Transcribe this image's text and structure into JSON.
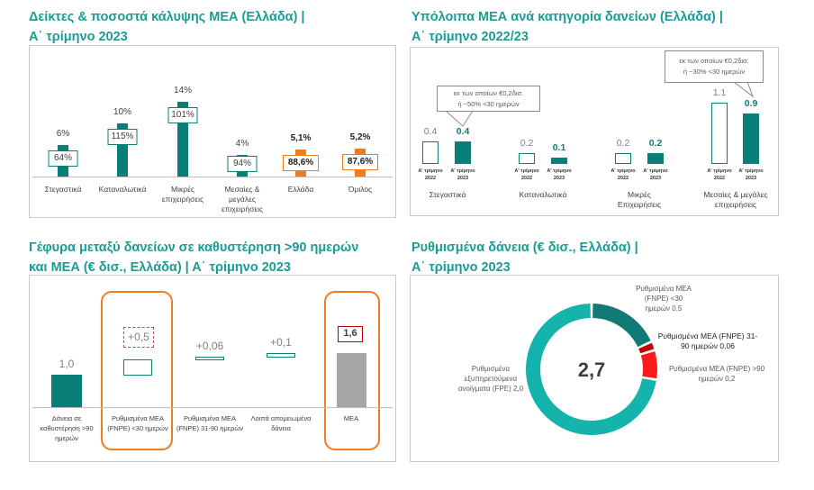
{
  "titles": {
    "p1_line1": "Δείκτες & ποσοστά κάλυψης ΜΕΑ (Ελλάδα) |",
    "p1_line2": "Α΄ τρίμηνο 2023",
    "p2_line1": "Υπόλοιπα ΜΕΑ ανά κατηγορία δανείων (Ελλάδα) |",
    "p2_line2": "Α΄ τρίμηνο 2022/23",
    "p3_line1": "Γέφυρα μεταξύ δανείων σε καθυστέρηση >90 ημερών",
    "p3_line2": "και ΜΕΑ (€ δισ., Ελλάδα) | Α΄ τρίμηνο 2023",
    "p4_line1": "Ρυθμισμένα δάνεια (€ δισ., Ελλάδα) |",
    "p4_line2": "Α΄ τρίμηνο 2023"
  },
  "colors": {
    "teal": "#0a7f78",
    "orange": "#f07c22",
    "gray": "#a6a6a6",
    "title": "#1a9c95",
    "fpe": "#14b3ab",
    "fnpe30": "#117a76",
    "fnpe90": "#c00000",
    "fnpe90p": "#ff1a1a"
  },
  "chart_data": [
    {
      "type": "bar",
      "title": "Δείκτες & ποσοστά κάλυψης ΜΕΑ (Ελλάδα) | Α΄ τρίμηνο 2023",
      "categories": [
        "Στεγαστικά",
        "Καταναλωτικά",
        "Μικρές επιχειρήσεις",
        "Μεσαίες & μεγάλες επιχειρήσεις",
        "Ελλάδα",
        "Όμιλος"
      ],
      "npe_ratio_labels": [
        "6%",
        "10%",
        "14%",
        "4%",
        "5,1%",
        "5,2%"
      ],
      "npe_ratio": [
        6,
        10,
        14,
        4,
        5.1,
        5.2
      ],
      "coverage_labels": [
        "64%",
        "115%",
        "101%",
        "94%",
        "88,6%",
        "87,6%"
      ],
      "coverage": [
        64,
        115,
        101,
        94,
        88.6,
        87.6
      ],
      "highlight": [
        false,
        false,
        false,
        false,
        true,
        true
      ]
    },
    {
      "type": "bar",
      "title": "Υπόλοιπα ΜΕΑ ανά κατηγορία δανείων (Ελλάδα) | Α΄ τρίμηνο 2022/23",
      "categories": [
        "Στεγαστικά",
        "Καταναλωτικά",
        "Μικρές Επιχειρήσεις",
        "Μεσαίες & μεγάλες επιχειρήσεις"
      ],
      "series": [
        {
          "name": "Α' τρίμηνο 2022",
          "line1": "Α' τρίμηνο",
          "line2": "2022",
          "values": [
            0.4,
            0.2,
            0.2,
            1.1
          ],
          "labels": [
            "0.4",
            "0.2",
            "0.2",
            "1.1"
          ]
        },
        {
          "name": "Α' τρίμηνο 2023",
          "line1": "Α' τρίμηνο",
          "line2": "2023",
          "values": [
            0.4,
            0.1,
            0.2,
            0.9
          ],
          "labels": [
            "0.4",
            "0.1",
            "0.2",
            "0.9"
          ]
        }
      ],
      "callouts": [
        {
          "line1": "εκ των οποίων €0,2δισ.",
          "line2": "ή ~50% <30 ημερών"
        },
        {
          "line1": "εκ των οποίων €0,2δισ.",
          "line2": "ή ~30% <30 ημερών"
        }
      ]
    },
    {
      "type": "bar",
      "subtype": "waterfall",
      "title": "Γέφυρα μεταξύ δανείων σε καθυστέρηση >90 ημερών και ΜΕΑ (€ δισ., Ελλάδα) | Α΄ τρίμηνο 2023",
      "categories": [
        "Δάνεια σε καθυστέρηση >90 ημερών",
        "Ρυθμισμένα ΜΕΑ (FNPE) <30 ημερών",
        "Ρυθμισμένα ΜΕΑ (FNPE) 31-90 ημερών",
        "Λοιπά απομειωμένα δάνεια",
        "ΜΕΑ"
      ],
      "values": [
        1.0,
        0.5,
        0.06,
        0.1,
        1.6
      ],
      "labels": [
        "1,0",
        "+0,5",
        "+0,06",
        "+0,1",
        "1,6"
      ]
    },
    {
      "type": "pie",
      "subtype": "donut",
      "title": "Ρυθμισμένα δάνεια (€ δισ., Ελλάδα) | Α΄ τρίμηνο 2023",
      "total_label": "2,7",
      "slices": [
        {
          "name": "Ρυθμισμένα ΜΕΑ (FNPE) <30 ημερών",
          "value": 0.5,
          "l1": "Ρυθμισμένα ΜΕΑ",
          "l2": "(FNPE) <30",
          "l3": "ημερών 0,5"
        },
        {
          "name": "Ρυθμισμένα ΜΕΑ (FNPE) 31-90 ημερών",
          "value": 0.06,
          "l1": "Ρυθμισμένα ΜΕΑ (FNPE) 31-",
          "l2": "90 ημερών 0,06"
        },
        {
          "name": "Ρυθμισμένα ΜΕΑ (FNPE) >90 ημερών",
          "value": 0.2,
          "l1": "Ρυθμισμένα ΜΕΑ (FNPE) >90",
          "l2": "ημερών 0,2"
        },
        {
          "name": "Ρυθμισμένα εξυπηρετούμενα ανοίγματα (FPE)",
          "value": 2.0,
          "l1": "Ρυθμισμένα",
          "l2": "εξυπηρετούμενα",
          "l3": "ανοίγματα (FPE) 2,0"
        }
      ]
    }
  ]
}
